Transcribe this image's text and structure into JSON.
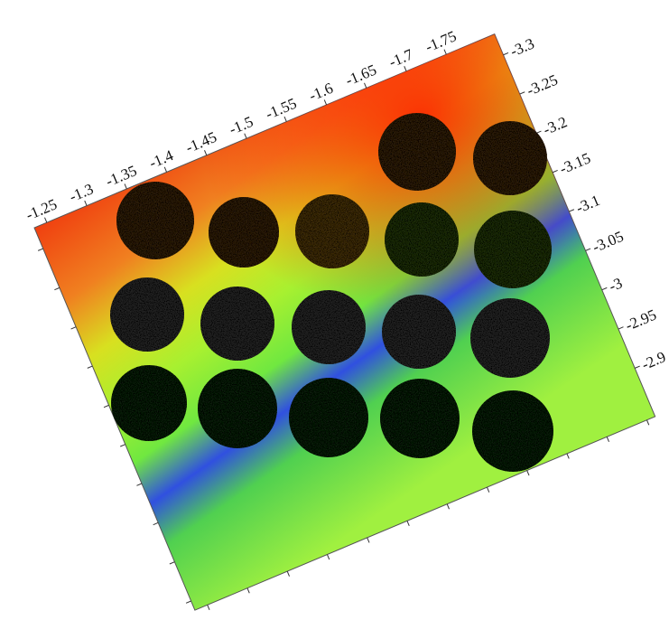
{
  "top_axis": {
    "ticks": [
      -1.25,
      -1.3,
      -1.35,
      -1.4,
      -1.45,
      -1.5,
      -1.55,
      -1.6,
      -1.65,
      -1.7,
      -1.75
    ]
  },
  "right_axis": {
    "ticks": [
      -3.3,
      -3.25,
      -3.2,
      -3.15,
      -3.1,
      -3.05,
      -3,
      -2.95,
      -2.9
    ]
  }
}
